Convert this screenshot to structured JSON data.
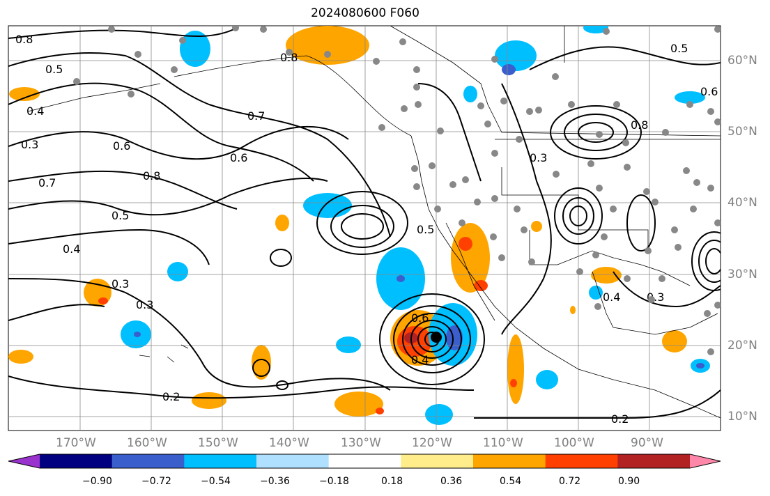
{
  "title": "2024080600 F060",
  "latitude_labels": [
    "60°N",
    "50°N",
    "40°N",
    "30°N",
    "20°N",
    "10°N"
  ],
  "longitude_labels": [
    "170°W",
    "160°W",
    "150°W",
    "140°W",
    "130°W",
    "120°W",
    "110°W",
    "100°W",
    "90°W"
  ],
  "contour_labels": [
    "0.8",
    "0.5",
    "0.4",
    "0.3",
    "0.7",
    "0.6",
    "0.8",
    "0.6",
    "0.5",
    "0.4",
    "0.3",
    "0.3",
    "0.2",
    "0.8",
    "0.7",
    "0.5",
    "0.6",
    "0.4",
    "0.2",
    "0.3",
    "0.4",
    "0.5",
    "0.6",
    "0.3",
    "0.8"
  ],
  "colorbar": {
    "ticks": [
      "−0.90",
      "−0.72",
      "−0.54",
      "−0.36",
      "−0.18",
      "0.18",
      "0.36",
      "0.54",
      "0.72",
      "0.90"
    ],
    "colors": [
      "#9a32cd",
      "#000080",
      "#3a5fcd",
      "#00bfff",
      "#b0e0ff",
      "#ffffff",
      "#ffec8b",
      "#ffa500",
      "#ff4000",
      "#b22222",
      "#ff88aa"
    ]
  },
  "colors": {
    "land_border": "#000000",
    "contour": "#000000",
    "grid": "#888888",
    "station": "#888888",
    "marker": "#000000"
  }
}
